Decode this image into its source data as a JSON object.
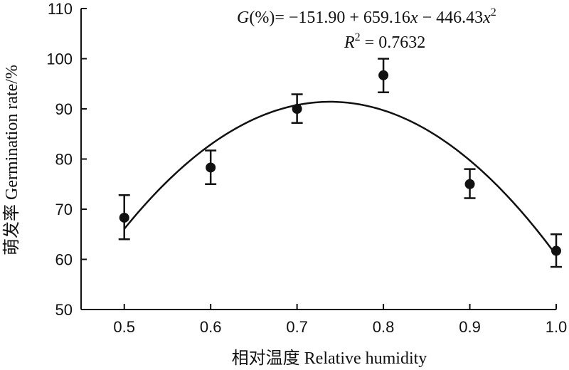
{
  "chart_data": {
    "type": "scatter",
    "xlabel": "相对温度 Relative humidity",
    "ylabel": "萌发率 Germination rate/%",
    "xlim": [
      0.45,
      1.0
    ],
    "ylim": [
      50,
      110
    ],
    "x_ticks": [
      "0.5",
      "0.6",
      "0.7",
      "0.8",
      "0.9",
      "1.0"
    ],
    "y_ticks": [
      "50",
      "60",
      "70",
      "80",
      "90",
      "100",
      "110"
    ],
    "grid": false,
    "points": [
      {
        "x": 0.5,
        "y": 68.3,
        "err_low": 64.0,
        "err_high": 72.8
      },
      {
        "x": 0.6,
        "y": 78.3,
        "err_low": 75.0,
        "err_high": 81.7
      },
      {
        "x": 0.7,
        "y": 90.0,
        "err_low": 87.2,
        "err_high": 92.9
      },
      {
        "x": 0.8,
        "y": 96.7,
        "err_low": 93.3,
        "err_high": 100.0
      },
      {
        "x": 0.9,
        "y": 75.0,
        "err_low": 72.2,
        "err_high": 78.0
      },
      {
        "x": 1.0,
        "y": 61.7,
        "err_low": 58.5,
        "err_high": 65.0
      }
    ],
    "fit": {
      "type": "quadratic",
      "a": -151.9,
      "b": 659.16,
      "c": -446.43,
      "x_range": [
        0.5,
        1.0
      ]
    },
    "equation": {
      "G": "G",
      "lhs_rest": "(%)= −151.90 + 659.16",
      "x1": "x",
      "mid": " − 446.43",
      "x2": "x",
      "sup2": "2",
      "R": "R",
      "rsup": "2",
      "r_rest": " = 0.7632"
    }
  }
}
